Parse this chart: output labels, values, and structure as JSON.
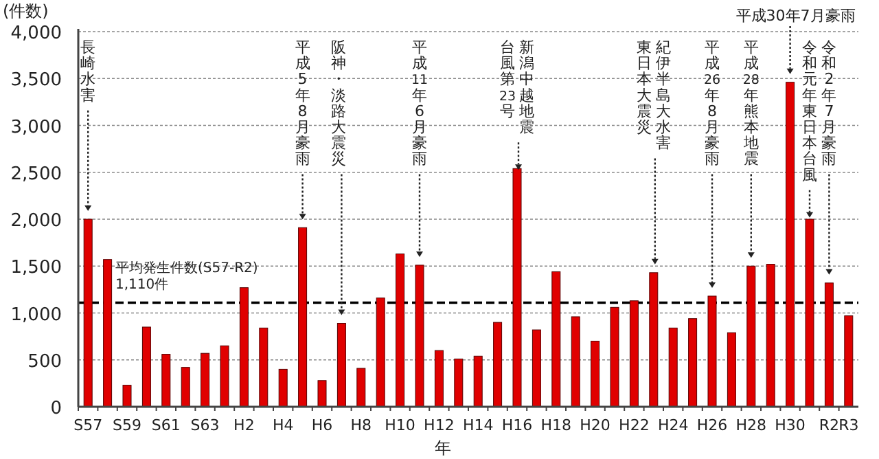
{
  "chart_data": {
    "type": "bar",
    "ylabel": "(件数)",
    "xlabel": "年",
    "categories": [
      "S57",
      null,
      "S59",
      null,
      "S61",
      null,
      "S63",
      null,
      "H2",
      null,
      "H4",
      null,
      "H6",
      null,
      "H8",
      null,
      "H10",
      null,
      "H12",
      null,
      "H14",
      null,
      "H16",
      null,
      "H18",
      null,
      "H20",
      null,
      "H22",
      null,
      "H24",
      null,
      "H26",
      null,
      "H28",
      null,
      "H30",
      null,
      "R2",
      "R3"
    ],
    "values": [
      2000,
      1570,
      230,
      850,
      560,
      420,
      570,
      650,
      1270,
      840,
      400,
      1910,
      280,
      890,
      410,
      1160,
      1630,
      1510,
      600,
      510,
      540,
      900,
      2540,
      820,
      1440,
      960,
      700,
      1060,
      1130,
      1430,
      840,
      940,
      1180,
      790,
      1500,
      1520,
      3460,
      2000,
      1320,
      970
    ],
    "color": "#e00000",
    "ylim": [
      0,
      4000
    ],
    "yticks": [
      0,
      500,
      {
        "value": 1000,
        "label": "1,000"
      },
      {
        "value": 1500,
        "label": "1,500"
      },
      {
        "value": 2000,
        "label": "2,000"
      },
      {
        "value": 2500,
        "label": "2,500"
      },
      {
        "value": 3000,
        "label": "3,000"
      },
      {
        "value": 3500,
        "label": "3,500"
      },
      {
        "value": 4000,
        "label": "4,000"
      }
    ],
    "grid": "y",
    "ref_lines": [
      {
        "axis": "y",
        "value": 1110,
        "label": "平均発生件数(S57-R2)\n1,110件",
        "line_style": "dashed",
        "color": "#000000"
      }
    ],
    "annotations": [
      "長崎水害",
      "平成5年8月豪雨",
      "阪神・淡路大震災",
      "平成11年6月豪雨",
      "新潟中越地震",
      "台風第23号",
      "紀伊半島大水害",
      "東日本大震災",
      "平成26年8月豪雨",
      "平成28年熊本地震",
      "平成30年7月豪雨",
      "令和元年東日本台風",
      "令和2年7月豪雨"
    ]
  }
}
